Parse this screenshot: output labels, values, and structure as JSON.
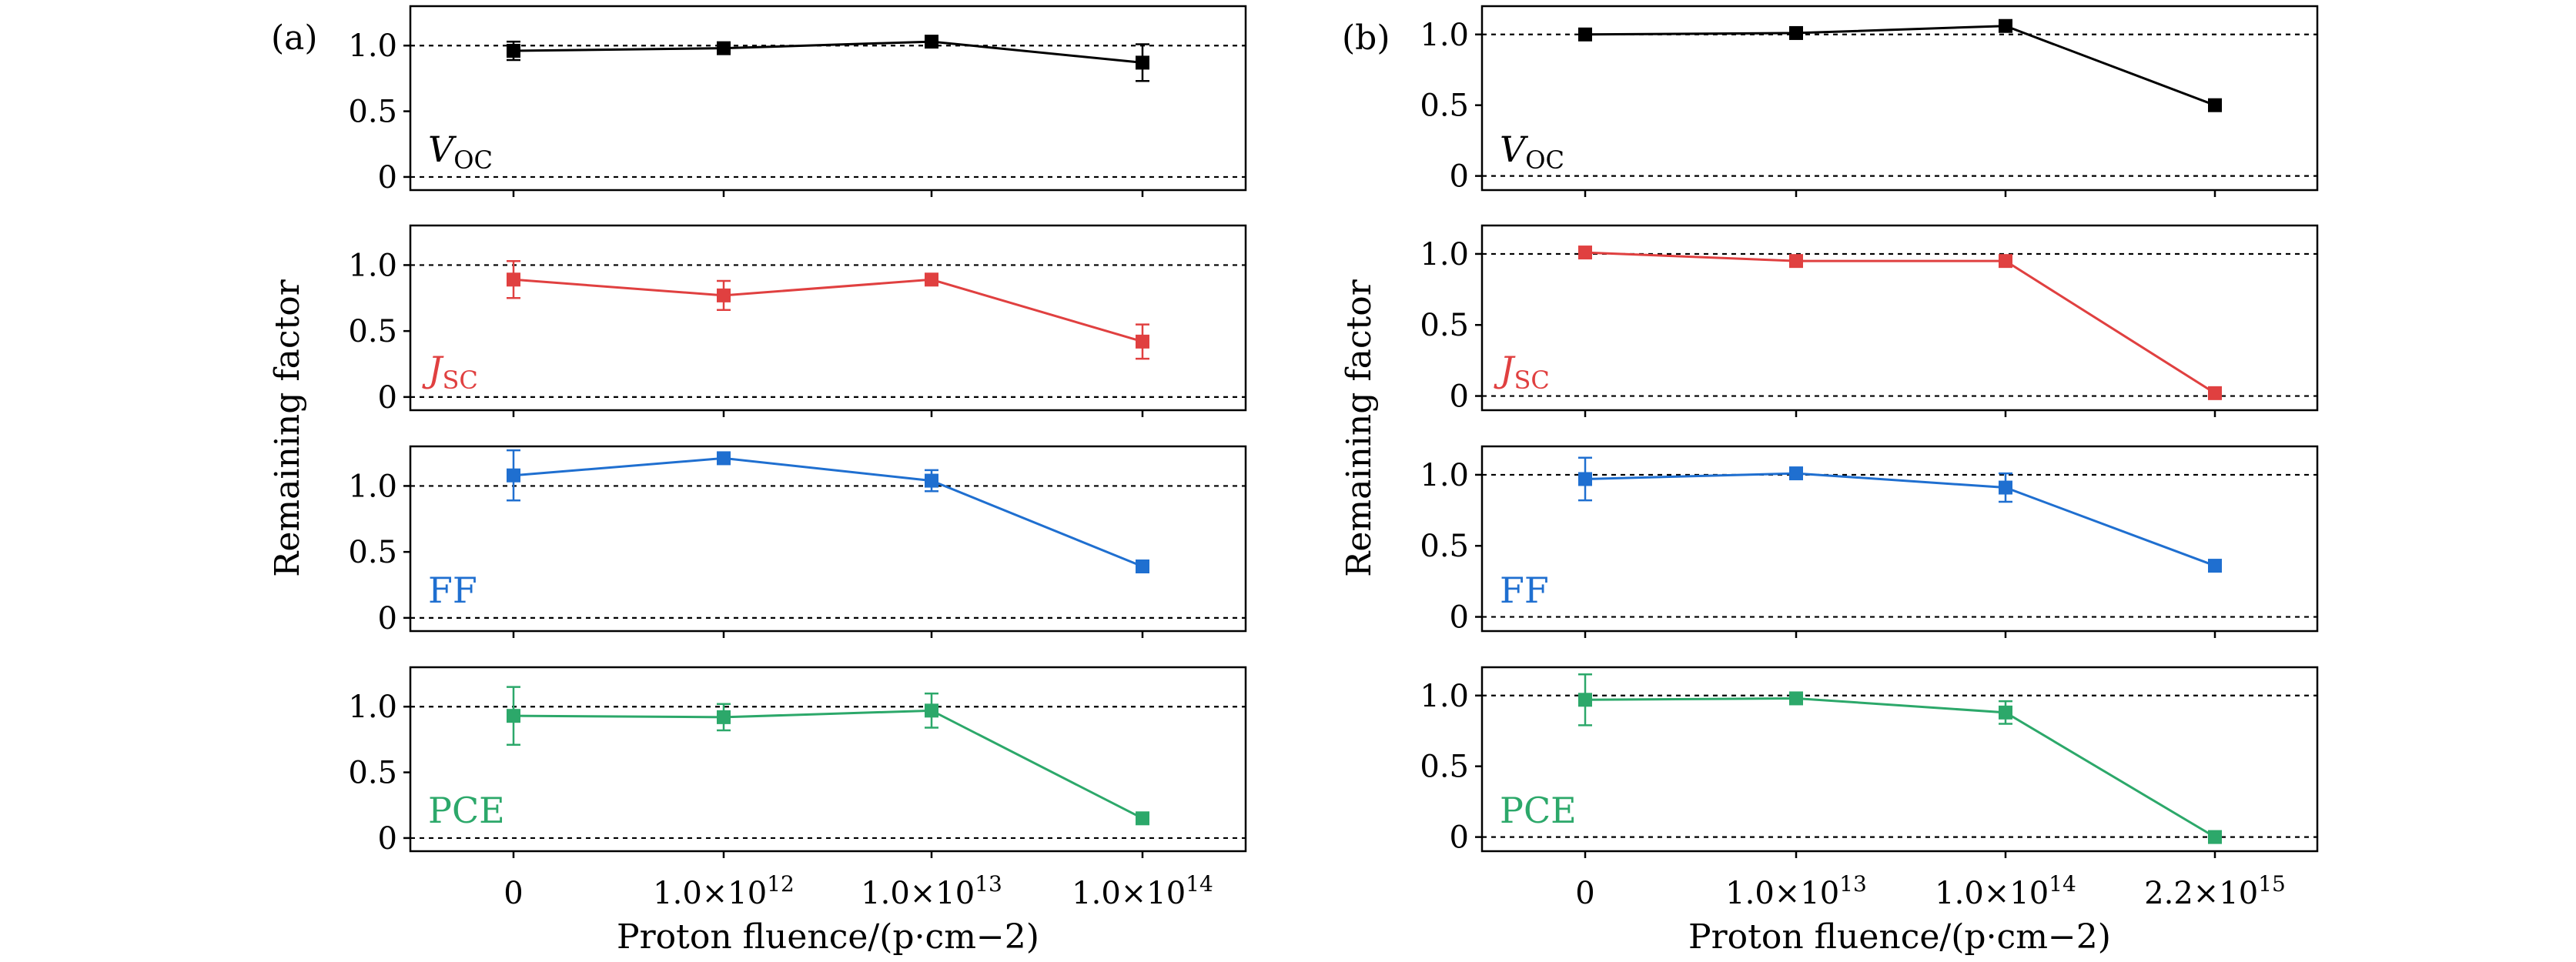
{
  "chart_data": [
    {
      "type": "line",
      "panel_label": "(a)",
      "ylabel": "Remaining factor",
      "xlabel": "Proton fluence/(p·cm−2)",
      "categories": [
        "0",
        "1.0×1012",
        "1.0×1013",
        "1.0×1014"
      ],
      "x_tick_labels": [
        {
          "mantissa": "0",
          "exponent": ""
        },
        {
          "mantissa": "1.0×10",
          "exponent": "12"
        },
        {
          "mantissa": "1.0×10",
          "exponent": "13"
        },
        {
          "mantissa": "1.0×10",
          "exponent": "14"
        }
      ],
      "yticks": [
        "0",
        "0.5",
        "1.0"
      ],
      "ylim": [
        -0.1,
        1.3
      ],
      "reference_lines": [
        0,
        1.0
      ],
      "subplots": [
        {
          "label": "V",
          "label_sub": "OC",
          "color": "#000000",
          "values": [
            0.96,
            0.98,
            1.03,
            0.87
          ],
          "errors": [
            0.07,
            0.02,
            0.02,
            0.14
          ]
        },
        {
          "label": "J",
          "label_sub": "SC",
          "color": "#e04040",
          "values": [
            0.89,
            0.77,
            0.89,
            0.42
          ],
          "errors": [
            0.14,
            0.11,
            0.04,
            0.13
          ]
        },
        {
          "label": "FF",
          "label_sub": "",
          "color": "#1f6fd0",
          "values": [
            1.08,
            1.21,
            1.04,
            0.39
          ],
          "errors": [
            0.19,
            0.03,
            0.08,
            0.02
          ]
        },
        {
          "label": "PCE",
          "label_sub": "",
          "color": "#2ca86a",
          "values": [
            0.93,
            0.92,
            0.97,
            0.15
          ],
          "errors": [
            0.22,
            0.1,
            0.13,
            0.03
          ]
        }
      ]
    },
    {
      "type": "line",
      "panel_label": "(b)",
      "ylabel": "Remaining factor",
      "xlabel": "Proton fluence/(p·cm−2)",
      "categories": [
        "0",
        "1.0×1013",
        "1.0×1014",
        "2.2×1015"
      ],
      "x_tick_labels": [
        {
          "mantissa": "0",
          "exponent": ""
        },
        {
          "mantissa": "1.0×10",
          "exponent": "13"
        },
        {
          "mantissa": "1.0×10",
          "exponent": "14"
        },
        {
          "mantissa": "2.2×10",
          "exponent": "15"
        }
      ],
      "yticks": [
        "0",
        "0.5",
        "1.0"
      ],
      "ylim": [
        -0.1,
        1.2
      ],
      "reference_lines": [
        0,
        1.0
      ],
      "subplots": [
        {
          "label": "V",
          "label_sub": "OC",
          "color": "#000000",
          "values": [
            1.0,
            1.01,
            1.06,
            0.5
          ],
          "errors": [
            0.04,
            0.03,
            0.03,
            0.02
          ]
        },
        {
          "label": "J",
          "label_sub": "SC",
          "color": "#e04040",
          "values": [
            1.01,
            0.95,
            0.95,
            0.02
          ],
          "errors": [
            0.03,
            0.02,
            0.02,
            0.02
          ]
        },
        {
          "label": "FF",
          "label_sub": "",
          "color": "#1f6fd0",
          "values": [
            0.97,
            1.01,
            0.91,
            0.36
          ],
          "errors": [
            0.15,
            0.03,
            0.1,
            0.02
          ]
        },
        {
          "label": "PCE",
          "label_sub": "",
          "color": "#2ca86a",
          "values": [
            0.97,
            0.98,
            0.88,
            0.0
          ],
          "errors": [
            0.18,
            0.03,
            0.08,
            0.02
          ]
        }
      ]
    }
  ]
}
